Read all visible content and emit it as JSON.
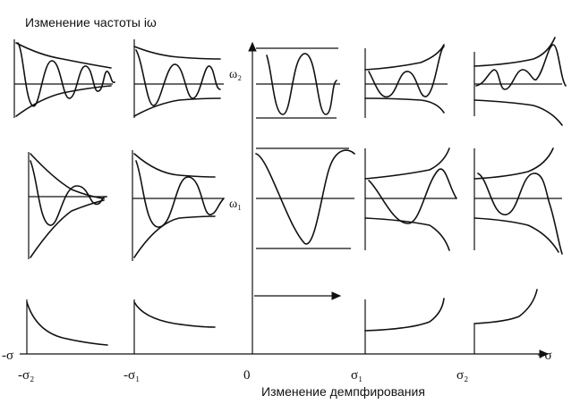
{
  "title": "Изменение частоты iω",
  "x_axis_caption": "Изменение демпфирования",
  "axis_neg_label": "-σ",
  "axis_pos_label": "+σ",
  "tick_labels": [
    "-σ₂",
    "-σ₁",
    "0",
    "σ₁",
    "σ₂"
  ],
  "row_labels": [
    "ω₂",
    "ω₁"
  ]
}
